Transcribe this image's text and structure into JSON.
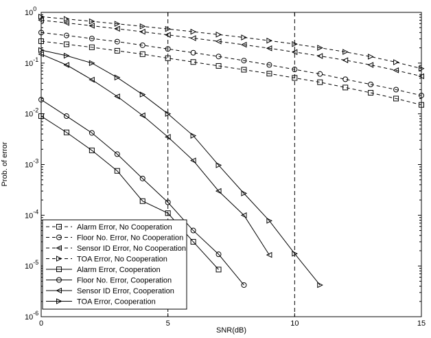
{
  "chart_data": {
    "type": "line",
    "title": "",
    "xlabel": "SNR(dB)",
    "ylabel": "Prob. of error",
    "xlim": [
      0,
      15
    ],
    "ylim": [
      1e-06,
      1
    ],
    "yscale": "log",
    "x_ticks": [
      "0",
      "5",
      "10",
      "15"
    ],
    "y_ticks": [
      {
        "base": "10",
        "exp": "0"
      },
      {
        "base": "10",
        "exp": "-1"
      },
      {
        "base": "10",
        "exp": "-2"
      },
      {
        "base": "10",
        "exp": "-3"
      },
      {
        "base": "10",
        "exp": "-4"
      },
      {
        "base": "10",
        "exp": "-5"
      },
      {
        "base": "10",
        "exp": "-6"
      }
    ],
    "vlines": [
      5,
      10
    ],
    "legend_position": "bottom-left",
    "series": [
      {
        "name": "Alarm Error, No Cooperation",
        "marker": "square",
        "dashed": true,
        "x": [
          0,
          1,
          2,
          3,
          4,
          5,
          6,
          7,
          8,
          9,
          10,
          11,
          12,
          13,
          14,
          15
        ],
        "y": [
          0.27,
          0.235,
          0.205,
          0.175,
          0.15,
          0.125,
          0.105,
          0.088,
          0.074,
          0.062,
          0.051,
          0.042,
          0.033,
          0.026,
          0.02,
          0.015
        ]
      },
      {
        "name": "Floor No. Error, No Cooperation",
        "marker": "circle",
        "dashed": true,
        "x": [
          0,
          1,
          2,
          3,
          4,
          5,
          6,
          7,
          8,
          9,
          10,
          11,
          12,
          13,
          14,
          15
        ],
        "y": [
          0.4,
          0.35,
          0.305,
          0.265,
          0.225,
          0.19,
          0.16,
          0.135,
          0.112,
          0.092,
          0.075,
          0.061,
          0.048,
          0.038,
          0.03,
          0.023
        ]
      },
      {
        "name": "Sensor ID Error, No Cooperation",
        "marker": "triangle-left",
        "dashed": true,
        "x": [
          0,
          1,
          2,
          3,
          4,
          5,
          6,
          7,
          8,
          9,
          10,
          11,
          12,
          13,
          14,
          15
        ],
        "y": [
          0.7,
          0.62,
          0.545,
          0.475,
          0.415,
          0.36,
          0.31,
          0.268,
          0.23,
          0.196,
          0.165,
          0.138,
          0.114,
          0.092,
          0.072,
          0.055
        ]
      },
      {
        "name": "TOA Error, No Cooperation",
        "marker": "triangle-right",
        "dashed": true,
        "x": [
          0,
          1,
          2,
          3,
          4,
          5,
          6,
          7,
          8,
          9,
          10,
          11,
          12,
          13,
          14,
          15
        ],
        "y": [
          0.82,
          0.74,
          0.665,
          0.595,
          0.53,
          0.47,
          0.415,
          0.365,
          0.32,
          0.277,
          0.237,
          0.2,
          0.166,
          0.134,
          0.104,
          0.078
        ]
      },
      {
        "name": "Alarm Error, Cooperation",
        "marker": "square",
        "dashed": false,
        "x": [
          0,
          1,
          2,
          3,
          4,
          5,
          6,
          7
        ],
        "y": [
          0.009,
          0.0043,
          0.0019,
          0.00075,
          0.00019,
          0.00011,
          3e-05,
          8.5e-06
        ]
      },
      {
        "name": "Floor No. Error, Cooperation",
        "marker": "circle",
        "dashed": false,
        "x": [
          0,
          1,
          2,
          3,
          4,
          5,
          6,
          7,
          8
        ],
        "y": [
          0.019,
          0.009,
          0.0042,
          0.0016,
          0.00053,
          0.00018,
          5e-05,
          1.7e-05,
          4.2e-06
        ]
      },
      {
        "name": "Sensor ID Error, Cooperation",
        "marker": "triangle-left",
        "dashed": false,
        "x": [
          0,
          1,
          2,
          3,
          4,
          5,
          6,
          7,
          8,
          9
        ],
        "y": [
          0.15,
          0.092,
          0.047,
          0.022,
          0.0093,
          0.0035,
          0.0012,
          0.0003,
          0.0001,
          1.65e-05
        ]
      },
      {
        "name": "TOA Error, Cooperation",
        "marker": "triangle-right",
        "dashed": false,
        "x": [
          0,
          1,
          2,
          3,
          4,
          5,
          6,
          7,
          8,
          9,
          10,
          11
        ],
        "y": [
          0.18,
          0.14,
          0.1,
          0.052,
          0.024,
          0.01,
          0.0037,
          0.00097,
          0.00027,
          7.8e-05,
          1.75e-05,
          4.2e-06
        ]
      }
    ]
  }
}
